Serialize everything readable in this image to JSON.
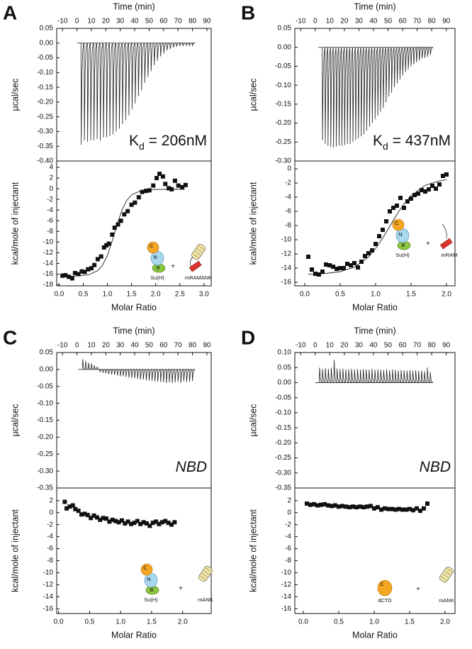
{
  "chart_data": [
    {
      "type": "line",
      "panel": "A",
      "x_label": "Time (min)",
      "y_label": "µcal/sec",
      "annotation": [
        "K",
        "d",
        " = 206nM"
      ],
      "x": [
        3,
        5.2,
        7.4,
        9.6,
        11.8,
        14,
        16.2,
        18.4,
        20.6,
        22.8,
        25,
        27.2,
        29.4,
        31.6,
        33.8,
        36,
        38.2,
        40.4,
        42.6,
        44.8,
        47,
        49.2,
        51.4,
        53.6,
        55.8,
        58,
        60.2,
        62.4,
        64.6,
        66.8,
        69,
        71.2,
        73.4,
        75.6,
        77.8,
        80
      ],
      "values": [
        -0.345,
        -0.33,
        -0.335,
        -0.33,
        -0.33,
        -0.325,
        -0.33,
        -0.32,
        -0.32,
        -0.315,
        -0.31,
        -0.3,
        -0.29,
        -0.275,
        -0.26,
        -0.245,
        -0.225,
        -0.205,
        -0.18,
        -0.16,
        -0.135,
        -0.115,
        -0.095,
        -0.075,
        -0.06,
        -0.045,
        -0.035,
        -0.025,
        -0.02,
        -0.015,
        -0.012,
        -0.01,
        -0.01,
        -0.008,
        -0.01,
        -0.008
      ],
      "xlim": [
        -14,
        93
      ],
      "ylim": [
        -0.4,
        0.05
      ],
      "xticks": [
        -10,
        0,
        10,
        20,
        30,
        40,
        50,
        60,
        70,
        80,
        90
      ],
      "yticks": [
        0.05,
        {
          "value": 0,
          "label": "0.00"
        },
        -0.05,
        {
          "value": -0.1,
          "label": "-0.10"
        },
        -0.15,
        {
          "value": -0.2,
          "label": "-0.20"
        },
        -0.25,
        {
          "value": -0.3,
          "label": "-0.30"
        },
        -0.35,
        {
          "value": -0.4,
          "label": "-0.40"
        }
      ]
    },
    {
      "type": "scatter",
      "x_label": "Molar Ratio",
      "y_label": "kcal/mole of injectant",
      "x": [
        0.07,
        0.13,
        0.2,
        0.27,
        0.33,
        0.4,
        0.47,
        0.53,
        0.6,
        0.67,
        0.73,
        0.8,
        0.87,
        0.93,
        0.98,
        1.03,
        1.1,
        1.15,
        1.22,
        1.28,
        1.35,
        1.42,
        1.5,
        1.57,
        1.65,
        1.72,
        1.8,
        1.87,
        1.95,
        2.02,
        2.08,
        2.15,
        2.2,
        2.27,
        2.33,
        2.4,
        2.47,
        2.55,
        2.62
      ],
      "values": [
        -16.3,
        -16.2,
        -16.5,
        -16.8,
        -15.8,
        -16,
        -15.5,
        -15.6,
        -15.1,
        -14.9,
        -14.3,
        -13.2,
        -12.7,
        -11,
        -10.6,
        -10.3,
        -8.6,
        -7.3,
        -6.7,
        -6,
        -4.8,
        -4.2,
        -3,
        -2.6,
        -1.6,
        -0.6,
        -0.4,
        -0.3,
        0.6,
        2,
        2.8,
        2.3,
        0.9,
        0.1,
        -0.1,
        1.5,
        0.6,
        0.3,
        0.7
      ],
      "fit_x": [
        0.05,
        0.3,
        0.6,
        0.8,
        0.9,
        1,
        1.1,
        1.2,
        1.3,
        1.4,
        1.5,
        1.7,
        2,
        2.3,
        2.6
      ],
      "fit_y": [
        -16.4,
        -16.38,
        -16.17,
        -15.36,
        -14.32,
        -12.49,
        -9.8,
        -6.7,
        -4.01,
        -2.19,
        -1.14,
        -0.33,
        -0.13,
        -0.1,
        -0.1
      ],
      "xlim": [
        -0.05,
        3.15
      ],
      "ylim": [
        -18.2,
        5.2
      ],
      "xticks": [
        {
          "value": 0,
          "label": "0.0"
        },
        0.5,
        {
          "value": 1,
          "label": "1.0"
        },
        1.5,
        {
          "value": 2,
          "label": "2.0"
        },
        2.5,
        {
          "value": 3,
          "label": "3.0"
        }
      ],
      "yticks": [
        4,
        2,
        0,
        -2,
        -4,
        -6,
        -8,
        -10,
        -12,
        -14,
        -16,
        -18
      ],
      "inset": {
        "protein": "Su(H)",
        "domains": [
          "C",
          "N",
          "B"
        ],
        "operator": "+",
        "ligand": "mRAMANK"
      }
    },
    {
      "type": "line",
      "panel": "B",
      "x_label": "Time (min)",
      "y_label": "µcal/sec",
      "annotation": [
        "K",
        "d",
        " = 437nM"
      ],
      "x": [
        5,
        6.9,
        8.8,
        10.7,
        12.6,
        14.5,
        16.4,
        18.3,
        20.2,
        22.1,
        24,
        25.9,
        27.8,
        29.7,
        31.6,
        33.5,
        35.4,
        37.3,
        39.2,
        41.1,
        43,
        44.9,
        46.8,
        48.7,
        50.6,
        52.5,
        54.4,
        56.3,
        58.2,
        60.1,
        62,
        63.9,
        65.8,
        67.7,
        69.6,
        71.5,
        73.4,
        75.3,
        77.2,
        79.1
      ],
      "values": [
        -0.245,
        -0.255,
        -0.26,
        -0.262,
        -0.265,
        -0.262,
        -0.26,
        -0.26,
        -0.258,
        -0.255,
        -0.255,
        -0.25,
        -0.245,
        -0.24,
        -0.235,
        -0.23,
        -0.22,
        -0.21,
        -0.2,
        -0.19,
        -0.18,
        -0.17,
        -0.16,
        -0.145,
        -0.13,
        -0.12,
        -0.105,
        -0.095,
        -0.085,
        -0.075,
        -0.065,
        -0.058,
        -0.05,
        -0.045,
        -0.04,
        -0.035,
        -0.03,
        -0.028,
        -0.025,
        -0.02
      ],
      "xlim": [
        -14,
        96
      ],
      "ylim": [
        -0.3,
        0.05
      ],
      "xticks": [
        -10,
        0,
        10,
        20,
        30,
        40,
        50,
        60,
        70,
        80,
        90
      ],
      "yticks": [
        0.05,
        {
          "value": 0,
          "label": "0.00"
        },
        -0.05,
        {
          "value": -0.1,
          "label": "-0.10"
        },
        -0.15,
        {
          "value": -0.2,
          "label": "-0.20"
        },
        -0.25,
        {
          "value": -0.3,
          "label": "-0.30"
        }
      ]
    },
    {
      "type": "scatter",
      "x_label": "Molar Ratio",
      "y_label": "kcal/mole of injectant",
      "x": [
        0.05,
        0.1,
        0.15,
        0.2,
        0.25,
        0.3,
        0.35,
        0.4,
        0.45,
        0.5,
        0.55,
        0.6,
        0.65,
        0.7,
        0.75,
        0.8,
        0.85,
        0.9,
        0.95,
        1,
        1.05,
        1.1,
        1.15,
        1.2,
        1.25,
        1.3,
        1.35,
        1.4,
        1.45,
        1.5,
        1.55,
        1.6,
        1.65,
        1.7,
        1.75,
        1.8,
        1.85,
        1.9,
        1.95,
        2
      ],
      "values": [
        -12.4,
        -14.2,
        -14.8,
        -14.9,
        -14.5,
        -13.5,
        -13.6,
        -13.8,
        -14.1,
        -14,
        -14,
        -13.4,
        -13.6,
        -13.3,
        -13.9,
        -13.1,
        -12.3,
        -11.9,
        -11.5,
        -10.6,
        -9.5,
        -8.6,
        -7.4,
        -6,
        -5.5,
        -5.2,
        -4.1,
        -5.5,
        -4.6,
        -4.2,
        -3.7,
        -3.5,
        -3,
        -3.2,
        -2.9,
        -2.4,
        -2.8,
        -2.2,
        -1,
        -0.8
      ],
      "fit_x": [
        0.05,
        0.3,
        0.5,
        0.7,
        0.9,
        1,
        1.1,
        1.2,
        1.3,
        1.4,
        1.5,
        1.7,
        1.9,
        2
      ],
      "fit_y": [
        -14.86,
        -14.75,
        -14.5,
        -13.87,
        -12.43,
        -11.24,
        -9.76,
        -8.1,
        -6.44,
        -4.96,
        -3.78,
        -2.33,
        -1.69,
        -1.54
      ],
      "xlim": [
        -0.14,
        2.12
      ],
      "ylim": [
        -16.5,
        1.1
      ],
      "xticks": [
        {
          "value": 0,
          "label": "0.0"
        },
        0.5,
        {
          "value": 1,
          "label": "1.0"
        },
        1.5,
        {
          "value": 2,
          "label": "2.0"
        }
      ],
      "yticks": [
        0,
        -2,
        -4,
        -6,
        -8,
        -10,
        -12,
        -14,
        -16
      ],
      "inset": {
        "protein": "Su(H)",
        "domains": [
          "C",
          "N",
          "B"
        ],
        "operator": "+",
        "ligand": "mRAM"
      }
    },
    {
      "type": "line",
      "panel": "C",
      "x_label": "Time (min)",
      "y_label": "µcal/sec",
      "annotation": "NBD",
      "x": [
        4,
        6,
        8,
        10,
        12,
        14,
        16,
        18,
        20,
        22,
        24,
        26,
        28,
        30,
        32,
        34,
        36,
        38,
        40,
        42,
        44,
        46,
        48,
        50,
        52,
        54,
        56,
        58,
        60,
        62,
        64,
        66,
        68,
        70,
        72,
        74,
        76,
        78,
        80
      ],
      "values": [
        0.03,
        0.025,
        0.02,
        0.018,
        0.012,
        0.008,
        -0.008,
        -0.01,
        -0.012,
        -0.014,
        -0.015,
        -0.016,
        -0.018,
        -0.02,
        -0.02,
        -0.022,
        -0.024,
        -0.025,
        -0.026,
        -0.028,
        -0.03,
        -0.03,
        -0.032,
        -0.033,
        -0.034,
        -0.035,
        -0.036,
        -0.037,
        -0.038,
        -0.04,
        -0.038,
        -0.04,
        -0.038,
        -0.036,
        -0.04,
        -0.035,
        -0.038,
        -0.036,
        -0.034
      ],
      "xlim": [
        -14,
        93
      ],
      "ylim": [
        -0.35,
        0.05
      ],
      "xticks": [
        -10,
        0,
        10,
        20,
        30,
        40,
        50,
        60,
        70,
        80,
        90
      ],
      "yticks": [
        0.05,
        {
          "value": 0,
          "label": "0.00"
        },
        -0.05,
        {
          "value": -0.1,
          "label": "-0.10"
        },
        -0.15,
        {
          "value": -0.2,
          "label": "-0.20"
        },
        -0.25,
        {
          "value": -0.3,
          "label": "-0.30"
        },
        -0.35
      ]
    },
    {
      "type": "scatter",
      "x_label": "Molar Ratio",
      "y_label": "kcal/mole of injectant",
      "x": [
        0.1,
        0.13,
        0.18,
        0.23,
        0.27,
        0.32,
        0.37,
        0.42,
        0.47,
        0.52,
        0.57,
        0.62,
        0.67,
        0.72,
        0.77,
        0.82,
        0.87,
        0.92,
        0.97,
        1.02,
        1.07,
        1.12,
        1.17,
        1.22,
        1.27,
        1.32,
        1.37,
        1.42,
        1.47,
        1.52,
        1.57,
        1.62,
        1.67,
        1.72,
        1.77,
        1.82,
        1.87
      ],
      "values": [
        1.8,
        0.7,
        1,
        1.2,
        0.6,
        0.3,
        -0.3,
        -0.2,
        -0.4,
        -0.9,
        -0.5,
        -0.8,
        -1.2,
        -0.9,
        -1,
        -1.5,
        -1.2,
        -1.4,
        -1.6,
        -1.3,
        -1.8,
        -1.5,
        -1.9,
        -1.7,
        -1.4,
        -1.9,
        -1.6,
        -1.8,
        -2.2,
        -1.7,
        -1.5,
        -1.9,
        -1.6,
        -1.4,
        -1.7,
        -2,
        -1.6
      ],
      "xlim": [
        -0.03,
        2.46
      ],
      "ylim": [
        -16.8,
        4.1
      ],
      "xticks": [
        {
          "value": 0,
          "label": "0.0"
        },
        0.5,
        {
          "value": 1,
          "label": "1.0"
        },
        1.5,
        {
          "value": 2,
          "label": "2.0"
        }
      ],
      "yticks": [
        2,
        0,
        -2,
        -4,
        -6,
        -8,
        -10,
        -12,
        -14,
        -16
      ],
      "inset": {
        "protein": "Su(H)",
        "domains": [
          "C",
          "N",
          "B"
        ],
        "operator": "+",
        "ligand": "mANK"
      }
    },
    {
      "type": "line",
      "panel": "D",
      "x_label": "Time (min)",
      "y_label": "µcal/sec",
      "annotation": "NBD",
      "x": [
        3,
        5,
        7,
        9,
        11,
        13,
        15,
        17,
        19,
        21,
        23,
        25,
        27,
        29,
        31,
        33,
        35,
        37,
        39,
        41,
        43,
        45,
        47,
        49,
        51,
        53,
        55,
        57,
        59,
        61,
        63,
        65,
        67,
        69,
        71,
        73,
        75,
        77,
        79
      ],
      "values": [
        0.05,
        0.045,
        0.048,
        0.046,
        0.05,
        0.075,
        0.047,
        0.045,
        0.046,
        0.044,
        0.045,
        0.046,
        0.044,
        0.045,
        0.043,
        0.045,
        0.044,
        0.043,
        0.045,
        0.042,
        0.044,
        0.043,
        0.042,
        0.044,
        0.041,
        0.043,
        0.042,
        0.04,
        0.042,
        0.041,
        0.04,
        0.042,
        0.04,
        0.041,
        0.039,
        0.04,
        0.038,
        0.05,
        0.035
      ],
      "xlim": [
        -14,
        96
      ],
      "ylim": [
        -0.35,
        0.1
      ],
      "xticks": [
        -10,
        0,
        10,
        20,
        30,
        40,
        50,
        60,
        70,
        80,
        90
      ],
      "yticks": [
        {
          "value": 0.1,
          "label": "0.10"
        },
        0.05,
        {
          "value": 0,
          "label": "0.00"
        },
        -0.05,
        {
          "value": -0.1,
          "label": "-0.10"
        },
        -0.15,
        {
          "value": -0.2,
          "label": "-0.20"
        },
        -0.25,
        {
          "value": -0.3,
          "label": "-0.30"
        },
        -0.35
      ]
    },
    {
      "type": "scatter",
      "x_label": "Molar Ratio",
      "y_label": "kcal/mole of injectant",
      "x": [
        0.05,
        0.1,
        0.15,
        0.2,
        0.25,
        0.3,
        0.35,
        0.4,
        0.45,
        0.5,
        0.55,
        0.6,
        0.65,
        0.7,
        0.75,
        0.8,
        0.85,
        0.9,
        0.95,
        1,
        1.05,
        1.1,
        1.15,
        1.2,
        1.25,
        1.3,
        1.35,
        1.4,
        1.45,
        1.5,
        1.55,
        1.6,
        1.65,
        1.7,
        1.75
      ],
      "values": [
        1.5,
        1.3,
        1.4,
        1.2,
        1.3,
        1.4,
        1.2,
        1.1,
        1.2,
        1,
        1.1,
        1,
        0.9,
        1,
        0.9,
        1,
        0.9,
        1,
        1.1,
        0.7,
        0.9,
        0.5,
        0.7,
        0.6,
        0.6,
        0.5,
        0.6,
        0.5,
        0.5,
        0.6,
        0.4,
        0.7,
        0.3,
        0.7,
        1.5
      ],
      "xlim": [
        -0.12,
        2.14
      ],
      "ylim": [
        -16.8,
        4.1
      ],
      "xticks": [
        {
          "value": 0,
          "label": "0.0"
        },
        0.5,
        {
          "value": 1,
          "label": "1.0"
        },
        1.5,
        {
          "value": 2,
          "label": "2.0"
        }
      ],
      "yticks": [
        2,
        0,
        -2,
        -4,
        -6,
        -8,
        -10,
        -12,
        -14,
        -16
      ],
      "inset": {
        "protein": "dCTD",
        "domains": [
          "C"
        ],
        "operator": "+",
        "ligand": "mANK"
      }
    }
  ]
}
